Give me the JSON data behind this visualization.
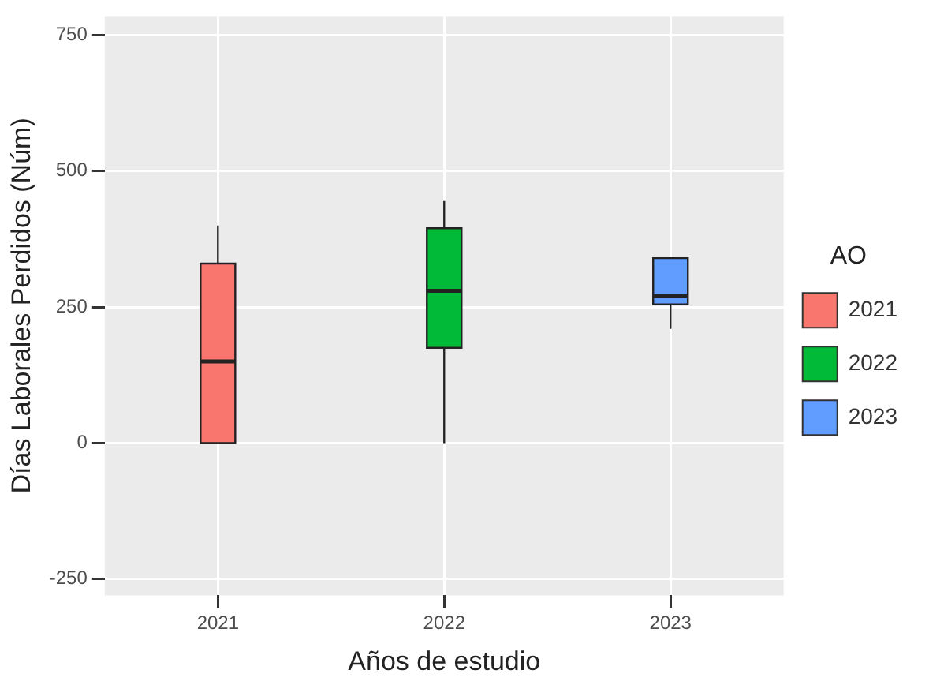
{
  "chart_data": {
    "type": "box",
    "xlabel": "Años de estudio",
    "ylabel": "Días Laborales Perdidos (Núm)",
    "legend_title": "AO",
    "legend": "right",
    "grid": true,
    "categories": [
      "2021",
      "2022",
      "2023"
    ],
    "series": [
      {
        "name": "2021",
        "color": "#f8766d",
        "boxes": [
          {
            "low": 0,
            "q1": 0,
            "median": 150,
            "q3": 330,
            "high": 400
          },
          null,
          null
        ]
      },
      {
        "name": "2022",
        "color": "#00ba38",
        "boxes": [
          null,
          {
            "low": 0,
            "q1": 175,
            "median": 280,
            "q3": 395,
            "high": 445
          },
          null
        ]
      },
      {
        "name": "2023",
        "color": "#619cff",
        "boxes": [
          null,
          null,
          {
            "low": 210,
            "q1": 255,
            "median": 270,
            "q3": 340,
            "high": 340
          }
        ]
      }
    ],
    "ylim": [
      -280,
      785
    ],
    "yticks": [
      -250,
      0,
      250,
      500,
      750
    ]
  }
}
